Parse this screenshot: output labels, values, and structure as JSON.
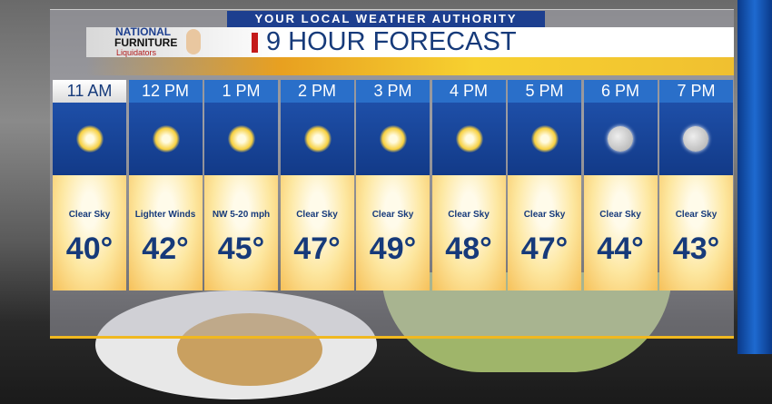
{
  "header": {
    "tagline": "YOUR LOCAL WEATHER AUTHORITY",
    "title": "9 HOUR FORECAST",
    "sponsor": {
      "line1": "NATIONAL",
      "line2": "FURNITURE",
      "line3": "Liquidators"
    }
  },
  "colors": {
    "accent_blue": "#2a6fc9",
    "title_blue": "#163a7a",
    "red": "#c41a1a",
    "orange": "#f0b820"
  },
  "forecast": [
    {
      "time": "11 AM",
      "icon": "sun-icon",
      "condition": "Clear Sky",
      "temp": "40°",
      "current": true
    },
    {
      "time": "12 PM",
      "icon": "sun-icon",
      "condition": "Lighter Winds",
      "temp": "42°"
    },
    {
      "time": "1 PM",
      "icon": "sun-icon",
      "condition": "NW 5-20 mph",
      "temp": "45°"
    },
    {
      "time": "2 PM",
      "icon": "sun-icon",
      "condition": "Clear Sky",
      "temp": "47°"
    },
    {
      "time": "3 PM",
      "icon": "sun-icon",
      "condition": "Clear Sky",
      "temp": "49°"
    },
    {
      "time": "4 PM",
      "icon": "sun-icon",
      "condition": "Clear Sky",
      "temp": "48°"
    },
    {
      "time": "5 PM",
      "icon": "sun-icon",
      "condition": "Clear Sky",
      "temp": "47°"
    },
    {
      "time": "6 PM",
      "icon": "moon-icon",
      "condition": "Clear Sky",
      "temp": "44°"
    },
    {
      "time": "7 PM",
      "icon": "moon-icon",
      "condition": "Clear Sky",
      "temp": "43°"
    }
  ]
}
